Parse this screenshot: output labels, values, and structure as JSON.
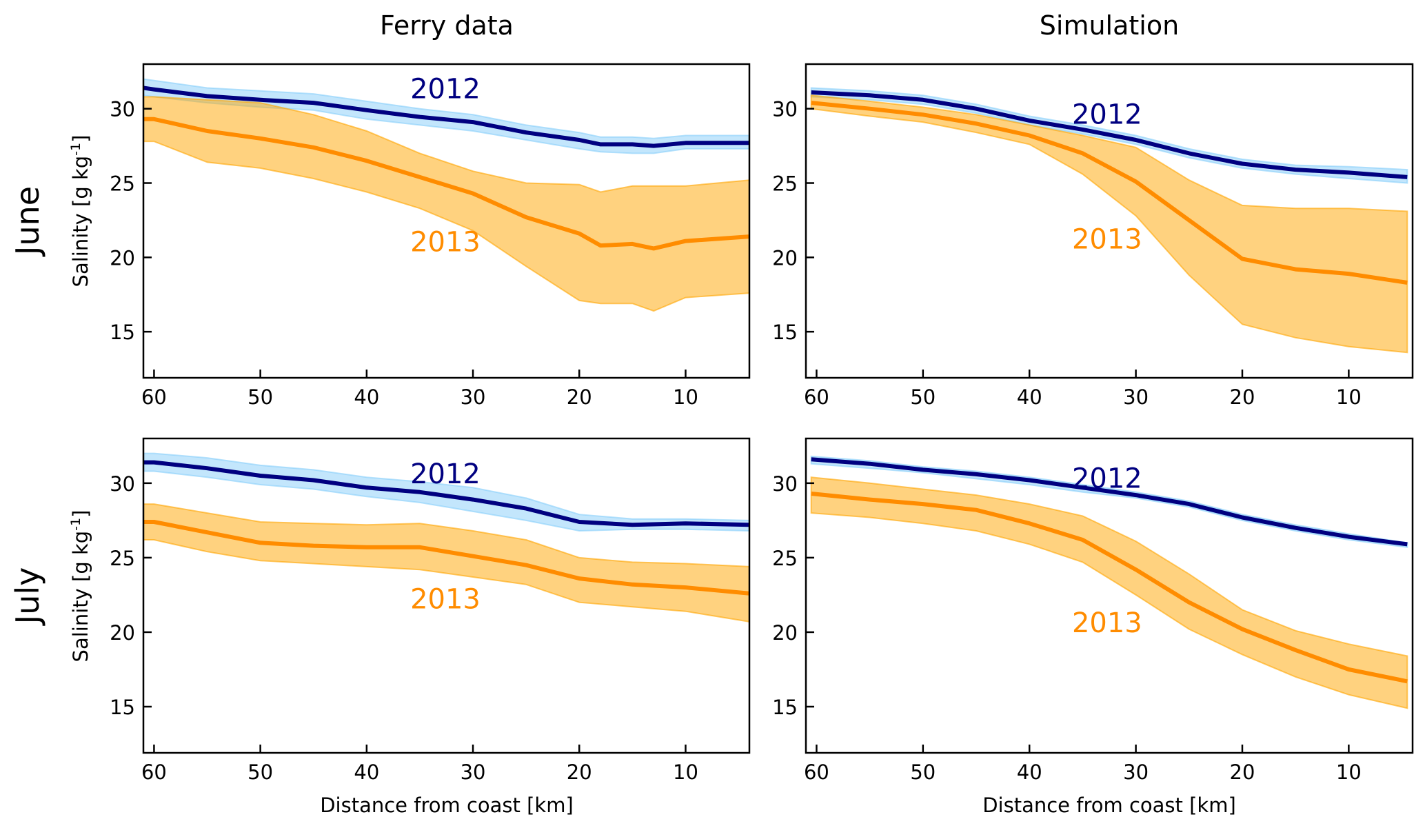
{
  "figure": {
    "column_titles": [
      "Ferry data",
      "Simulation"
    ],
    "row_titles": [
      "June",
      "July"
    ],
    "ylabel": "Salinity [g kg",
    "ylabel_sup": "-1",
    "ylabel_close": "]",
    "xlabel": "Distance from coast [km]",
    "colors": {
      "line_2012": "#000080",
      "band_2012": "#87CEFA",
      "line_2013": "#FF8C00",
      "band_2013": "#FFA500"
    }
  },
  "chart_data": [
    {
      "type": "line",
      "panel": "June / Ferry data",
      "title": "",
      "xlabel": "",
      "ylabel": "Salinity [g kg-1]",
      "xlim": [
        61,
        4
      ],
      "ylim": [
        11.9,
        33
      ],
      "xticks": [
        60,
        50,
        40,
        30,
        20,
        10
      ],
      "yticks": [
        15,
        20,
        25,
        30
      ],
      "grid": false,
      "x": [
        61,
        60,
        55,
        50,
        45,
        40,
        35,
        30,
        25,
        20,
        18,
        15,
        13,
        10,
        4
      ],
      "series": [
        {
          "name": "2012",
          "label_pos": [
            35.9,
            30.7
          ],
          "values": [
            31.4,
            31.3,
            30.85,
            30.6,
            30.4,
            29.9,
            29.45,
            29.1,
            28.4,
            27.9,
            27.6,
            27.6,
            27.5,
            27.7,
            27.7
          ],
          "upper": [
            32.0,
            31.9,
            31.4,
            31.2,
            31.0,
            30.5,
            30.0,
            29.6,
            28.9,
            28.4,
            28.1,
            28.1,
            28.0,
            28.2,
            28.2
          ],
          "lower": [
            30.9,
            30.8,
            30.4,
            30.1,
            29.9,
            29.3,
            28.9,
            28.5,
            27.9,
            27.3,
            27.1,
            27.0,
            27.0,
            27.3,
            27.3
          ]
        },
        {
          "name": "2013",
          "label_pos": [
            35.9,
            20.4
          ],
          "values": [
            29.3,
            29.3,
            28.5,
            28.0,
            27.4,
            26.5,
            25.4,
            24.3,
            22.7,
            21.6,
            20.8,
            20.9,
            20.6,
            21.1,
            21.4
          ],
          "upper": [
            30.8,
            30.8,
            30.6,
            30.4,
            29.6,
            28.5,
            27.0,
            25.8,
            25.0,
            24.9,
            24.4,
            24.8,
            24.8,
            24.8,
            25.2
          ],
          "lower": [
            27.8,
            27.8,
            26.4,
            26.0,
            25.3,
            24.4,
            23.3,
            21.8,
            19.4,
            17.1,
            16.9,
            16.9,
            16.4,
            17.3,
            17.6
          ]
        }
      ]
    },
    {
      "type": "line",
      "panel": "June / Simulation",
      "title": "",
      "xlabel": "",
      "ylabel": "",
      "xlim": [
        61,
        4
      ],
      "ylim": [
        11.9,
        33
      ],
      "xticks": [
        60,
        50,
        40,
        30,
        20,
        10
      ],
      "yticks": [
        15,
        20,
        25,
        30
      ],
      "grid": false,
      "x": [
        60.5,
        55,
        50,
        45,
        40,
        35,
        30,
        25,
        20,
        15,
        10,
        4.5
      ],
      "series": [
        {
          "name": "2012",
          "label_pos": [
            36.0,
            29.0
          ],
          "values": [
            31.1,
            30.9,
            30.6,
            30.0,
            29.2,
            28.6,
            27.9,
            27.0,
            26.3,
            25.9,
            25.7,
            25.4
          ],
          "upper": [
            31.4,
            31.2,
            30.9,
            30.3,
            29.5,
            28.9,
            28.2,
            27.3,
            26.6,
            26.2,
            26.1,
            25.9
          ],
          "lower": [
            30.8,
            30.6,
            30.3,
            29.7,
            28.9,
            28.3,
            27.6,
            26.7,
            26.0,
            25.6,
            25.3,
            25.0
          ]
        },
        {
          "name": "2013",
          "label_pos": [
            36.0,
            20.6
          ],
          "values": [
            30.4,
            30.0,
            29.6,
            29.0,
            28.2,
            27.0,
            25.1,
            22.5,
            19.9,
            19.2,
            18.9,
            18.3
          ],
          "upper": [
            30.9,
            30.5,
            30.1,
            29.6,
            28.9,
            28.2,
            27.4,
            25.2,
            23.5,
            23.3,
            23.3,
            23.1
          ],
          "lower": [
            30.0,
            29.5,
            29.1,
            28.4,
            27.6,
            25.6,
            22.8,
            18.8,
            15.5,
            14.6,
            14.0,
            13.6
          ]
        }
      ]
    },
    {
      "type": "line",
      "panel": "July / Ferry data",
      "title": "",
      "xlabel": "Distance from coast [km]",
      "ylabel": "Salinity [g kg-1]",
      "xlim": [
        61,
        4
      ],
      "ylim": [
        11.9,
        33
      ],
      "xticks": [
        60,
        50,
        40,
        30,
        20,
        10
      ],
      "yticks": [
        15,
        20,
        25,
        30
      ],
      "grid": false,
      "x": [
        61,
        60,
        55,
        50,
        45,
        40,
        35,
        30,
        25,
        20,
        15,
        10,
        4
      ],
      "series": [
        {
          "name": "2012",
          "label_pos": [
            35.9,
            30.0
          ],
          "values": [
            31.4,
            31.4,
            31.0,
            30.5,
            30.2,
            29.7,
            29.4,
            28.9,
            28.3,
            27.4,
            27.2,
            27.3,
            27.2
          ],
          "upper": [
            32.0,
            32.0,
            31.7,
            31.2,
            30.9,
            30.4,
            30.1,
            29.7,
            29.0,
            27.9,
            27.6,
            27.6,
            27.5
          ],
          "lower": [
            30.8,
            30.8,
            30.4,
            29.9,
            29.6,
            29.1,
            28.7,
            28.1,
            27.5,
            26.8,
            26.9,
            26.9,
            26.8
          ]
        },
        {
          "name": "2013",
          "label_pos": [
            35.9,
            21.6
          ],
          "values": [
            27.4,
            27.4,
            26.7,
            26.0,
            25.8,
            25.7,
            25.7,
            25.1,
            24.5,
            23.6,
            23.2,
            23.0,
            22.6
          ],
          "upper": [
            28.6,
            28.6,
            28.0,
            27.4,
            27.3,
            27.2,
            27.3,
            26.8,
            26.2,
            25.0,
            24.7,
            24.6,
            24.4
          ],
          "lower": [
            26.2,
            26.2,
            25.4,
            24.8,
            24.6,
            24.4,
            24.2,
            23.7,
            23.2,
            22.0,
            21.7,
            21.4,
            20.7
          ]
        }
      ]
    },
    {
      "type": "line",
      "panel": "July / Simulation",
      "title": "",
      "xlabel": "Distance from coast [km]",
      "ylabel": "",
      "xlim": [
        61,
        4
      ],
      "ylim": [
        11.9,
        33
      ],
      "xticks": [
        60,
        50,
        40,
        30,
        20,
        10
      ],
      "yticks": [
        15,
        20,
        25,
        30
      ],
      "grid": false,
      "x": [
        60.5,
        55,
        50,
        45,
        40,
        35,
        30,
        25,
        20,
        15,
        10,
        4.5
      ],
      "series": [
        {
          "name": "2012",
          "label_pos": [
            36.0,
            29.7
          ],
          "values": [
            31.6,
            31.3,
            30.9,
            30.6,
            30.2,
            29.7,
            29.2,
            28.6,
            27.7,
            27.0,
            26.4,
            25.9
          ],
          "upper": [
            31.8,
            31.5,
            31.1,
            30.8,
            30.4,
            29.9,
            29.4,
            28.8,
            27.9,
            27.2,
            26.6,
            26.0
          ],
          "lower": [
            31.3,
            31.0,
            30.7,
            30.3,
            29.9,
            29.4,
            29.0,
            28.4,
            27.5,
            26.8,
            26.2,
            25.7
          ]
        },
        {
          "name": "2013",
          "label_pos": [
            36.0,
            20.0
          ],
          "values": [
            29.3,
            28.9,
            28.6,
            28.2,
            27.3,
            26.2,
            24.2,
            22.0,
            20.2,
            18.8,
            17.5,
            16.7
          ],
          "upper": [
            30.4,
            30.0,
            29.6,
            29.2,
            28.6,
            27.8,
            26.1,
            23.9,
            21.5,
            20.1,
            19.2,
            18.4
          ],
          "lower": [
            28.0,
            27.7,
            27.3,
            26.8,
            25.9,
            24.7,
            22.5,
            20.2,
            18.5,
            17.0,
            15.8,
            14.9
          ]
        }
      ]
    }
  ]
}
